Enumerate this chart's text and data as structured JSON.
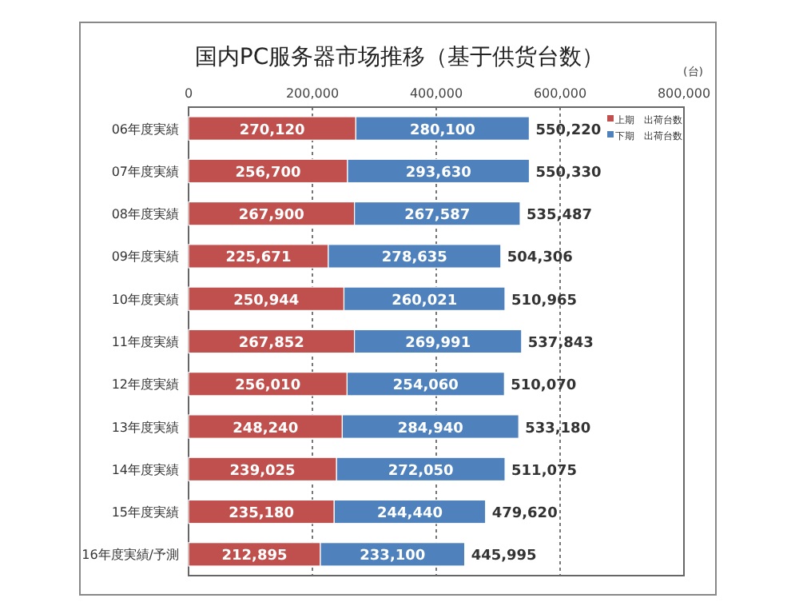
{
  "chart_data": {
    "type": "bar",
    "orientation": "horizontal",
    "stacked": true,
    "title": "国内PC服务器市场推移（基于供货台数）",
    "annotations": [
      "(台)"
    ],
    "categories": [
      "06年度実績",
      "07年度実績",
      "08年度実績",
      "09年度実績",
      "10年度実績",
      "11年度実績",
      "12年度実績",
      "13年度実績",
      "14年度実績",
      "15年度実績",
      "16年度実績/予測"
    ],
    "series": [
      {
        "name": "上期　出荷台数",
        "color": "#c0504d",
        "values": [
          270120,
          256700,
          267900,
          225671,
          250944,
          267852,
          256010,
          248240,
          239025,
          235180,
          212895
        ],
        "value_labels": [
          "270,120",
          "256,700",
          "267,900",
          "225,671",
          "250,944",
          "267,852",
          "256,010",
          "248,240",
          "239,025",
          "235,180",
          "212,895"
        ]
      },
      {
        "name": "下期　出荷台数",
        "color": "#4f81bd",
        "values": [
          280100,
          293630,
          267587,
          278635,
          260021,
          269991,
          254060,
          284940,
          272050,
          244440,
          233100
        ],
        "value_labels": [
          "280,100",
          "293,630",
          "267,587",
          "278,635",
          "260,021",
          "269,991",
          "254,060",
          "284,940",
          "272,050",
          "244,440",
          "233,100"
        ]
      }
    ],
    "totals": [
      "550,220",
      "550,330",
      "535,487",
      "504,306",
      "510,965",
      "537,843",
      "510,070",
      "533,180",
      "511,075",
      "479,620",
      "445,995"
    ],
    "xlim": [
      0,
      800000
    ],
    "xticks": [
      {
        "value": 0,
        "label": "0"
      },
      {
        "value": 200000,
        "label": "200,000"
      },
      {
        "value": 400000,
        "label": "400,000"
      },
      {
        "value": 600000,
        "label": "600,000"
      },
      {
        "value": 800000,
        "label": "800,000"
      }
    ],
    "grid": "x",
    "legend": "top right"
  }
}
